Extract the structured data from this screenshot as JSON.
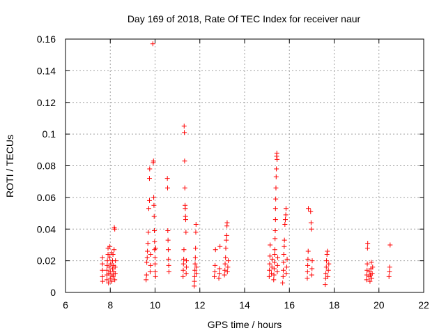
{
  "chart_data": {
    "type": "scatter",
    "title": "Day 169 of 2018, Rate Of TEC Index for receiver naur",
    "xlabel": "GPS time / hours",
    "ylabel": "ROTI / TECUs",
    "xlim": [
      6,
      22
    ],
    "ylim": [
      0,
      0.16
    ],
    "x_ticks": [
      6,
      8,
      10,
      12,
      14,
      16,
      18,
      20,
      22
    ],
    "y_ticks": [
      0,
      0.02,
      0.04,
      0.06,
      0.08,
      0.1,
      0.12,
      0.14,
      0.16
    ],
    "x_tick_labels": [
      "6",
      "8",
      "10",
      "12",
      "14",
      "16",
      "18",
      "20",
      "22"
    ],
    "y_tick_labels": [
      "0",
      "0.02",
      "0.04",
      "0.06",
      "0.08",
      "0.1",
      "0.12",
      "0.14",
      "0.16"
    ],
    "grid": true,
    "marker": "+",
    "color": "#ff0000",
    "series": [
      {
        "name": "ROTI",
        "points": [
          [
            7.65,
            0.01
          ],
          [
            7.65,
            0.014
          ],
          [
            7.65,
            0.018
          ],
          [
            7.65,
            0.022
          ],
          [
            7.66,
            0.007
          ],
          [
            7.85,
            0.008
          ],
          [
            7.85,
            0.011
          ],
          [
            7.85,
            0.014
          ],
          [
            7.86,
            0.017
          ],
          [
            7.87,
            0.02
          ],
          [
            7.9,
            0.024
          ],
          [
            7.9,
            0.028
          ],
          [
            7.92,
            0.006
          ],
          [
            7.93,
            0.012
          ],
          [
            7.95,
            0.016
          ],
          [
            7.97,
            0.022
          ],
          [
            7.98,
            0.029
          ],
          [
            8.0,
            0.009
          ],
          [
            8.0,
            0.013
          ],
          [
            8.02,
            0.018
          ],
          [
            8.05,
            0.025
          ],
          [
            8.07,
            0.007
          ],
          [
            8.08,
            0.011
          ],
          [
            8.1,
            0.015
          ],
          [
            8.1,
            0.02
          ],
          [
            8.12,
            0.024
          ],
          [
            8.13,
            0.01
          ],
          [
            8.15,
            0.013
          ],
          [
            8.15,
            0.017
          ],
          [
            8.17,
            0.027
          ],
          [
            8.18,
            0.041
          ],
          [
            8.2,
            0.04
          ],
          [
            8.2,
            0.008
          ],
          [
            8.22,
            0.012
          ],
          [
            8.22,
            0.016
          ],
          [
            8.23,
            0.02
          ],
          [
            9.6,
            0.008
          ],
          [
            9.62,
            0.011
          ],
          [
            9.63,
            0.019
          ],
          [
            9.65,
            0.022
          ],
          [
            9.66,
            0.026
          ],
          [
            9.68,
            0.031
          ],
          [
            9.7,
            0.038
          ],
          [
            9.72,
            0.053
          ],
          [
            9.75,
            0.058
          ],
          [
            9.75,
            0.072
          ],
          [
            9.76,
            0.078
          ],
          [
            9.78,
            0.013
          ],
          [
            9.8,
            0.017
          ],
          [
            9.8,
            0.024
          ],
          [
            9.9,
            0.157
          ],
          [
            9.92,
            0.082
          ],
          [
            9.93,
            0.083
          ],
          [
            9.94,
            0.06
          ],
          [
            9.95,
            0.055
          ],
          [
            9.96,
            0.048
          ],
          [
            9.97,
            0.039
          ],
          [
            9.98,
            0.032
          ],
          [
            9.98,
            0.027
          ],
          [
            10.0,
            0.022
          ],
          [
            10.0,
            0.018
          ],
          [
            10.01,
            0.013
          ],
          [
            10.02,
            0.01
          ],
          [
            10.03,
            0.028
          ],
          [
            10.55,
            0.072
          ],
          [
            10.56,
            0.066
          ],
          [
            10.57,
            0.039
          ],
          [
            10.58,
            0.033
          ],
          [
            10.59,
            0.027
          ],
          [
            10.6,
            0.021
          ],
          [
            10.61,
            0.017
          ],
          [
            10.62,
            0.013
          ],
          [
            11.25,
            0.01
          ],
          [
            11.26,
            0.014
          ],
          [
            11.27,
            0.018
          ],
          [
            11.28,
            0.021
          ],
          [
            11.29,
            0.027
          ],
          [
            11.3,
            0.105
          ],
          [
            11.31,
            0.101
          ],
          [
            11.32,
            0.083
          ],
          [
            11.33,
            0.066
          ],
          [
            11.34,
            0.055
          ],
          [
            11.35,
            0.053
          ],
          [
            11.36,
            0.048
          ],
          [
            11.37,
            0.046
          ],
          [
            11.38,
            0.038
          ],
          [
            11.39,
            0.012
          ],
          [
            11.4,
            0.016
          ],
          [
            11.4,
            0.02
          ],
          [
            11.75,
            0.004
          ],
          [
            11.76,
            0.007
          ],
          [
            11.77,
            0.01
          ],
          [
            11.78,
            0.014
          ],
          [
            11.79,
            0.018
          ],
          [
            11.8,
            0.022
          ],
          [
            11.81,
            0.028
          ],
          [
            11.82,
            0.038
          ],
          [
            11.83,
            0.043
          ],
          [
            11.84,
            0.012
          ],
          [
            11.85,
            0.016
          ],
          [
            12.65,
            0.01
          ],
          [
            12.67,
            0.013
          ],
          [
            12.68,
            0.017
          ],
          [
            12.7,
            0.027
          ],
          [
            12.85,
            0.009
          ],
          [
            12.87,
            0.012
          ],
          [
            12.88,
            0.015
          ],
          [
            12.9,
            0.029
          ],
          [
            13.1,
            0.011
          ],
          [
            13.12,
            0.014
          ],
          [
            13.13,
            0.018
          ],
          [
            13.15,
            0.022
          ],
          [
            13.16,
            0.028
          ],
          [
            13.18,
            0.033
          ],
          [
            13.2,
            0.036
          ],
          [
            13.21,
            0.042
          ],
          [
            13.22,
            0.044
          ],
          [
            13.23,
            0.013
          ],
          [
            13.25,
            0.016
          ],
          [
            13.27,
            0.02
          ],
          [
            15.1,
            0.01
          ],
          [
            15.11,
            0.014
          ],
          [
            15.12,
            0.018
          ],
          [
            15.13,
            0.023
          ],
          [
            15.14,
            0.03
          ],
          [
            15.2,
            0.012
          ],
          [
            15.22,
            0.016
          ],
          [
            15.24,
            0.021
          ],
          [
            15.3,
            0.008
          ],
          [
            15.31,
            0.011
          ],
          [
            15.32,
            0.015
          ],
          [
            15.33,
            0.019
          ],
          [
            15.34,
            0.024
          ],
          [
            15.35,
            0.027
          ],
          [
            15.36,
            0.034
          ],
          [
            15.37,
            0.039
          ],
          [
            15.38,
            0.046
          ],
          [
            15.38,
            0.053
          ],
          [
            15.39,
            0.059
          ],
          [
            15.4,
            0.066
          ],
          [
            15.41,
            0.073
          ],
          [
            15.42,
            0.078
          ],
          [
            15.43,
            0.086
          ],
          [
            15.44,
            0.088
          ],
          [
            15.45,
            0.084
          ],
          [
            15.46,
            0.013
          ],
          [
            15.47,
            0.017
          ],
          [
            15.48,
            0.022
          ],
          [
            15.7,
            0.006
          ],
          [
            15.72,
            0.01
          ],
          [
            15.73,
            0.014
          ],
          [
            15.74,
            0.019
          ],
          [
            15.75,
            0.024
          ],
          [
            15.77,
            0.029
          ],
          [
            15.78,
            0.033
          ],
          [
            15.8,
            0.043
          ],
          [
            15.82,
            0.046
          ],
          [
            15.84,
            0.049
          ],
          [
            15.85,
            0.053
          ],
          [
            15.86,
            0.012
          ],
          [
            15.88,
            0.016
          ],
          [
            15.9,
            0.021
          ],
          [
            16.8,
            0.009
          ],
          [
            16.81,
            0.013
          ],
          [
            16.82,
            0.017
          ],
          [
            16.83,
            0.021
          ],
          [
            16.84,
            0.026
          ],
          [
            16.85,
            0.053
          ],
          [
            16.95,
            0.051
          ],
          [
            16.97,
            0.044
          ],
          [
            16.98,
            0.04
          ],
          [
            17.0,
            0.011
          ],
          [
            17.01,
            0.015
          ],
          [
            17.02,
            0.02
          ],
          [
            17.6,
            0.005
          ],
          [
            17.62,
            0.009
          ],
          [
            17.63,
            0.012
          ],
          [
            17.65,
            0.016
          ],
          [
            17.66,
            0.02
          ],
          [
            17.68,
            0.024
          ],
          [
            17.7,
            0.026
          ],
          [
            17.72,
            0.01
          ],
          [
            17.74,
            0.014
          ],
          [
            17.76,
            0.018
          ],
          [
            19.45,
            0.008
          ],
          [
            19.46,
            0.011
          ],
          [
            19.47,
            0.014
          ],
          [
            19.48,
            0.018
          ],
          [
            19.49,
            0.028
          ],
          [
            19.5,
            0.031
          ],
          [
            19.55,
            0.01
          ],
          [
            19.57,
            0.013
          ],
          [
            19.6,
            0.007
          ],
          [
            19.62,
            0.011
          ],
          [
            19.64,
            0.015
          ],
          [
            19.66,
            0.019
          ],
          [
            19.68,
            0.009
          ],
          [
            19.7,
            0.012
          ],
          [
            19.72,
            0.016
          ],
          [
            20.45,
            0.01
          ],
          [
            20.47,
            0.013
          ],
          [
            20.48,
            0.016
          ],
          [
            20.5,
            0.03
          ]
        ]
      }
    ]
  }
}
